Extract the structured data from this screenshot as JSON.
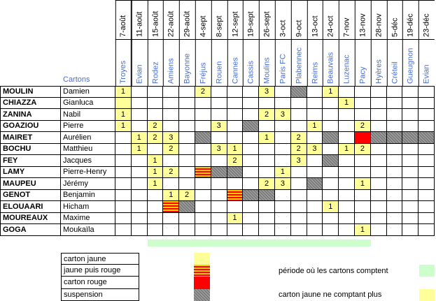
{
  "header": {
    "cartons_label": "Cartons"
  },
  "columns": [
    {
      "date": "7-août",
      "city": "Troyes"
    },
    {
      "date": "11-août",
      "city": "Evian"
    },
    {
      "date": "15-août",
      "city": "Rodez"
    },
    {
      "date": "22-août",
      "city": "Amiens"
    },
    {
      "date": "29-août",
      "city": "Bayonne"
    },
    {
      "date": "4-sept",
      "city": "Fréjus"
    },
    {
      "date": "8-sept",
      "city": "Rouen"
    },
    {
      "date": "12-sept",
      "city": "Cannes"
    },
    {
      "date": "19-sept",
      "city": "Cassis"
    },
    {
      "date": "26-sept",
      "city": "Moulins"
    },
    {
      "date": "3-oct",
      "city": "Paris FC"
    },
    {
      "date": "9-oct",
      "city": "Plabennec"
    },
    {
      "date": "13-oct",
      "city": "Reims"
    },
    {
      "date": "24-oct",
      "city": "Beauvais"
    },
    {
      "date": "7-nov",
      "city": "Luzenac"
    },
    {
      "date": "13-nov",
      "city": "Pacy"
    },
    {
      "date": "28-nov",
      "city": "Hyères"
    },
    {
      "date": "5-déc",
      "city": "Créteil"
    },
    {
      "date": "19-déc",
      "city": "Gueugnon"
    },
    {
      "date": "23-déc",
      "city": "Evian"
    }
  ],
  "players": [
    {
      "surname": "MOULIN",
      "firstname": "Damien",
      "cells": [
        [
          "y",
          "1"
        ],
        [
          "",
          ""
        ],
        [
          "",
          ""
        ],
        [
          "",
          ""
        ],
        [
          "",
          ""
        ],
        [
          "y",
          "2"
        ],
        [
          "",
          ""
        ],
        [
          "",
          ""
        ],
        [
          "",
          ""
        ],
        [
          "y",
          "3"
        ],
        [
          "",
          ""
        ],
        [
          "g",
          ""
        ],
        [
          "",
          ""
        ],
        [
          "y",
          "1"
        ],
        [
          "",
          ""
        ],
        [
          "",
          ""
        ],
        [
          "",
          ""
        ],
        [
          "",
          ""
        ],
        [
          "",
          ""
        ],
        [
          "",
          ""
        ]
      ]
    },
    {
      "surname": "CHIAZZA",
      "firstname": "Gianluca",
      "cells": [
        [
          "y",
          ""
        ],
        [
          "",
          ""
        ],
        [
          "",
          ""
        ],
        [
          "",
          ""
        ],
        [
          "",
          ""
        ],
        [
          "",
          ""
        ],
        [
          "",
          ""
        ],
        [
          "",
          ""
        ],
        [
          "",
          ""
        ],
        [
          "",
          ""
        ],
        [
          "",
          ""
        ],
        [
          "",
          ""
        ],
        [
          "",
          ""
        ],
        [
          "",
          ""
        ],
        [
          "y",
          "1"
        ],
        [
          "",
          ""
        ],
        [
          "",
          ""
        ],
        [
          "",
          ""
        ],
        [
          "",
          ""
        ],
        [
          "",
          ""
        ]
      ]
    },
    {
      "surname": "ZANINA",
      "firstname": "Nabil",
      "cells": [
        [
          "y",
          "1"
        ],
        [
          "",
          ""
        ],
        [
          "",
          ""
        ],
        [
          "",
          ""
        ],
        [
          "",
          ""
        ],
        [
          "",
          ""
        ],
        [
          "",
          ""
        ],
        [
          "",
          ""
        ],
        [
          "",
          ""
        ],
        [
          "y",
          "2"
        ],
        [
          "y",
          "3"
        ],
        [
          "",
          ""
        ],
        [
          "",
          ""
        ],
        [
          "",
          ""
        ],
        [
          "",
          ""
        ],
        [
          "",
          ""
        ],
        [
          "",
          ""
        ],
        [
          "",
          ""
        ],
        [
          "",
          ""
        ],
        [
          "",
          ""
        ]
      ]
    },
    {
      "surname": "GOAZIOU",
      "firstname": "Pierre",
      "cells": [
        [
          "y",
          "1"
        ],
        [
          "",
          ""
        ],
        [
          "y",
          "2"
        ],
        [
          "",
          ""
        ],
        [
          "",
          ""
        ],
        [
          "",
          ""
        ],
        [
          "y",
          "3"
        ],
        [
          "",
          ""
        ],
        [
          "g",
          ""
        ],
        [
          "",
          ""
        ],
        [
          "",
          ""
        ],
        [
          "",
          ""
        ],
        [
          "y",
          "1"
        ],
        [
          "",
          ""
        ],
        [
          "",
          ""
        ],
        [
          "y",
          "2"
        ],
        [
          "",
          ""
        ],
        [
          "",
          ""
        ],
        [
          "",
          ""
        ],
        [
          "",
          ""
        ]
      ]
    },
    {
      "surname": "MAIRET",
      "firstname": "Aurélien",
      "cells": [
        [
          "",
          ""
        ],
        [
          "y",
          "1"
        ],
        [
          "y",
          "2"
        ],
        [
          "y",
          "3"
        ],
        [
          "",
          ""
        ],
        [
          "g",
          ""
        ],
        [
          "",
          ""
        ],
        [
          "",
          ""
        ],
        [
          "",
          ""
        ],
        [
          "y",
          "1"
        ],
        [
          "",
          ""
        ],
        [
          "y",
          "2"
        ],
        [
          "",
          ""
        ],
        [
          "g",
          ""
        ],
        [
          "",
          ""
        ],
        [
          "r",
          ""
        ],
        [
          "g",
          ""
        ],
        [
          "g",
          ""
        ],
        [
          "g",
          ""
        ],
        [
          "g",
          ""
        ]
      ]
    },
    {
      "surname": "BOCHU",
      "firstname": "Matthieu",
      "cells": [
        [
          "",
          ""
        ],
        [
          "y",
          "1"
        ],
        [
          "",
          ""
        ],
        [
          "y",
          "2"
        ],
        [
          "",
          ""
        ],
        [
          "",
          ""
        ],
        [
          "y",
          "3"
        ],
        [
          "y",
          "1"
        ],
        [
          "",
          ""
        ],
        [
          "",
          ""
        ],
        [
          "",
          ""
        ],
        [
          "y",
          "2"
        ],
        [
          "y",
          "3"
        ],
        [
          "",
          ""
        ],
        [
          "y",
          "1"
        ],
        [
          "y",
          "2"
        ],
        [
          "",
          ""
        ],
        [
          "",
          ""
        ],
        [
          "",
          ""
        ],
        [
          "",
          ""
        ]
      ]
    },
    {
      "surname": "FEY",
      "firstname": "Jacques",
      "cells": [
        [
          "",
          ""
        ],
        [
          "",
          ""
        ],
        [
          "y",
          "1"
        ],
        [
          "",
          ""
        ],
        [
          "",
          ""
        ],
        [
          "",
          ""
        ],
        [
          "",
          ""
        ],
        [
          "y",
          "2"
        ],
        [
          "",
          ""
        ],
        [
          "",
          ""
        ],
        [
          "",
          ""
        ],
        [
          "y",
          "3"
        ],
        [
          "",
          ""
        ],
        [
          "g",
          ""
        ],
        [
          "",
          ""
        ],
        [
          "",
          ""
        ],
        [
          "",
          ""
        ],
        [
          "",
          ""
        ],
        [
          "",
          ""
        ],
        [
          "",
          ""
        ]
      ]
    },
    {
      "surname": "LAMY",
      "firstname": "Pierre-Henry",
      "cells": [
        [
          "",
          ""
        ],
        [
          "",
          ""
        ],
        [
          "y",
          "1"
        ],
        [
          "y",
          "2"
        ],
        [
          "",
          ""
        ],
        [
          "yr",
          ""
        ],
        [
          "g",
          ""
        ],
        [
          "g",
          ""
        ],
        [
          "",
          ""
        ],
        [
          "",
          ""
        ],
        [
          "y",
          "1"
        ],
        [
          "",
          ""
        ],
        [
          "",
          ""
        ],
        [
          "",
          ""
        ],
        [
          "",
          ""
        ],
        [
          "",
          ""
        ],
        [
          "",
          ""
        ],
        [
          "",
          ""
        ],
        [
          "",
          ""
        ],
        [
          "",
          ""
        ]
      ]
    },
    {
      "surname": "MAUPEU",
      "firstname": "Jérémy",
      "cells": [
        [
          "",
          ""
        ],
        [
          "",
          ""
        ],
        [
          "y",
          "1"
        ],
        [
          "",
          ""
        ],
        [
          "",
          ""
        ],
        [
          "",
          ""
        ],
        [
          "",
          ""
        ],
        [
          "",
          ""
        ],
        [
          "",
          ""
        ],
        [
          "y",
          "2"
        ],
        [
          "y",
          "3"
        ],
        [
          "",
          ""
        ],
        [
          "g",
          ""
        ],
        [
          "",
          ""
        ],
        [
          "",
          ""
        ],
        [
          "y",
          "1"
        ],
        [
          "",
          ""
        ],
        [
          "",
          ""
        ],
        [
          "",
          ""
        ],
        [
          "",
          ""
        ]
      ]
    },
    {
      "surname": "GENOT",
      "firstname": "Benjamin",
      "cells": [
        [
          "",
          ""
        ],
        [
          "",
          ""
        ],
        [
          "",
          ""
        ],
        [
          "y",
          "1"
        ],
        [
          "y",
          "2"
        ],
        [
          "",
          ""
        ],
        [
          "",
          ""
        ],
        [
          "yr",
          ""
        ],
        [
          "g",
          ""
        ],
        [
          "g",
          ""
        ],
        [
          "",
          ""
        ],
        [
          "",
          ""
        ],
        [
          "",
          ""
        ],
        [
          "",
          ""
        ],
        [
          "",
          ""
        ],
        [
          "",
          ""
        ],
        [
          "",
          ""
        ],
        [
          "",
          ""
        ],
        [
          "",
          ""
        ],
        [
          "",
          ""
        ]
      ]
    },
    {
      "surname": "ELOUAARI",
      "firstname": "Hicham",
      "cells": [
        [
          "",
          ""
        ],
        [
          "",
          ""
        ],
        [
          "",
          ""
        ],
        [
          "yr",
          ""
        ],
        [
          "g",
          ""
        ],
        [
          "",
          ""
        ],
        [
          "",
          ""
        ],
        [
          "",
          ""
        ],
        [
          "",
          ""
        ],
        [
          "",
          ""
        ],
        [
          "",
          ""
        ],
        [
          "",
          ""
        ],
        [
          "",
          ""
        ],
        [
          "y",
          "1"
        ],
        [
          "",
          ""
        ],
        [
          "",
          ""
        ],
        [
          "",
          ""
        ],
        [
          "",
          ""
        ],
        [
          "",
          ""
        ],
        [
          "",
          ""
        ]
      ]
    },
    {
      "surname": "MOUREAUX",
      "firstname": "Maxime",
      "cells": [
        [
          "",
          ""
        ],
        [
          "",
          ""
        ],
        [
          "",
          ""
        ],
        [
          "",
          ""
        ],
        [
          "",
          ""
        ],
        [
          "",
          ""
        ],
        [
          "",
          ""
        ],
        [
          "y",
          "1"
        ],
        [
          "",
          ""
        ],
        [
          "",
          ""
        ],
        [
          "",
          ""
        ],
        [
          "",
          ""
        ],
        [
          "",
          ""
        ],
        [
          "",
          ""
        ],
        [
          "",
          ""
        ],
        [
          "",
          ""
        ],
        [
          "",
          ""
        ],
        [
          "",
          ""
        ],
        [
          "",
          ""
        ],
        [
          "",
          ""
        ]
      ]
    },
    {
      "surname": "GOGA",
      "firstname": "Moukaïla",
      "cells": [
        [
          "",
          ""
        ],
        [
          "",
          ""
        ],
        [
          "",
          ""
        ],
        [
          "",
          ""
        ],
        [
          "",
          ""
        ],
        [
          "",
          ""
        ],
        [
          "",
          ""
        ],
        [
          "",
          ""
        ],
        [
          "",
          ""
        ],
        [
          "",
          ""
        ],
        [
          "",
          ""
        ],
        [
          "",
          ""
        ],
        [
          "",
          ""
        ],
        [
          "",
          ""
        ],
        [
          "",
          ""
        ],
        [
          "y",
          "1"
        ],
        [
          "",
          ""
        ],
        [
          "",
          ""
        ],
        [
          "",
          ""
        ],
        [
          "",
          ""
        ]
      ]
    }
  ],
  "period_bar": {
    "start_column": 2,
    "end_column": 15
  },
  "legend": {
    "yellow": "carton jaune",
    "yellow_then_red": "jaune puis rouge",
    "red": "carton rouge",
    "suspension": "suspension",
    "period": "période où les cartons comptent",
    "expired_yellow": "carton jaune ne comptant plus"
  },
  "colors": {
    "yellow": "#ffff99",
    "red": "#ff0000",
    "green": "#ccffcc",
    "suspension": "#808080",
    "city_text": "#4a6fd0"
  }
}
